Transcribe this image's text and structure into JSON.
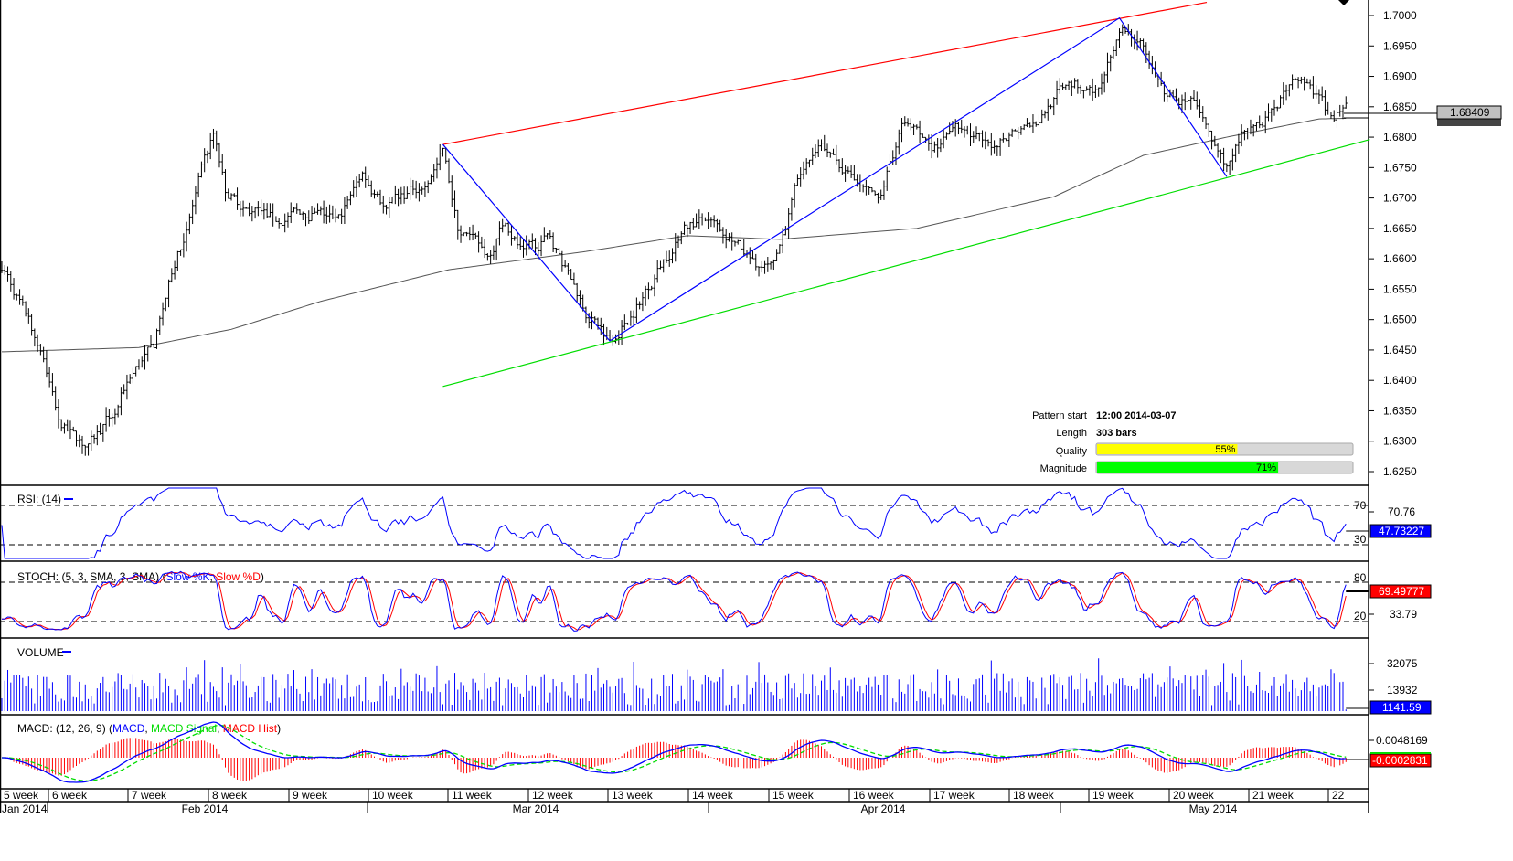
{
  "chart_data": {
    "type": "ohlc",
    "instrument_timeframe_bars_per_week": 30,
    "price_axis": {
      "ticks": [
        "1.7000",
        "1.6950",
        "1.6900",
        "1.6850",
        "1.6800",
        "1.6750",
        "1.6700",
        "1.6650",
        "1.6600",
        "1.6550",
        "1.6500",
        "1.6450",
        "1.6400",
        "1.6350",
        "1.6300",
        "1.6250"
      ],
      "ylim": [
        1.625,
        1.7
      ]
    },
    "current_price": "1.68409",
    "price_path": [
      [
        0,
        1.659
      ],
      [
        6,
        1.653
      ],
      [
        14,
        1.6439
      ],
      [
        20,
        1.6319
      ],
      [
        29,
        1.6289
      ],
      [
        38,
        1.6349
      ],
      [
        43,
        1.6409
      ],
      [
        51,
        1.6454
      ],
      [
        57,
        1.6575
      ],
      [
        61,
        1.6635
      ],
      [
        66,
        1.6725
      ],
      [
        71,
        1.68
      ],
      [
        75,
        1.671
      ],
      [
        83,
        1.668
      ],
      [
        92,
        1.6665
      ],
      [
        101,
        1.668
      ],
      [
        113,
        1.6665
      ],
      [
        121,
        1.674
      ],
      [
        129,
        1.668
      ],
      [
        141,
        1.6725
      ],
      [
        148,
        1.6778
      ],
      [
        153,
        1.665
      ],
      [
        163,
        1.6605
      ],
      [
        169,
        1.6665
      ],
      [
        175,
        1.6605
      ],
      [
        184,
        1.6635
      ],
      [
        196,
        1.6515
      ],
      [
        204,
        1.6469
      ],
      [
        212,
        1.6515
      ],
      [
        221,
        1.659
      ],
      [
        229,
        1.665
      ],
      [
        236,
        1.6665
      ],
      [
        245,
        1.6635
      ],
      [
        252,
        1.659
      ],
      [
        259,
        1.6582
      ],
      [
        267,
        1.6725
      ],
      [
        275,
        1.68
      ],
      [
        281,
        1.6755
      ],
      [
        288,
        1.671
      ],
      [
        294,
        1.6695
      ],
      [
        302,
        1.6815
      ],
      [
        313,
        1.6785
      ],
      [
        322,
        1.6823
      ],
      [
        330,
        1.6785
      ],
      [
        337,
        1.68
      ],
      [
        348,
        1.683
      ],
      [
        357,
        1.689
      ],
      [
        368,
        1.6875
      ],
      [
        375,
        1.6988
      ],
      [
        383,
        1.695
      ],
      [
        391,
        1.686
      ],
      [
        399,
        1.686
      ],
      [
        406,
        1.68
      ],
      [
        411,
        1.6747
      ],
      [
        417,
        1.6815
      ],
      [
        426,
        1.6838
      ],
      [
        434,
        1.6905
      ],
      [
        442,
        1.686
      ],
      [
        446,
        1.683
      ],
      [
        451,
        1.6844
      ]
    ],
    "ma_path": [
      [
        0,
        1.6447
      ],
      [
        46,
        1.6454
      ],
      [
        77,
        1.6484
      ],
      [
        107,
        1.653
      ],
      [
        150,
        1.6582
      ],
      [
        196,
        1.6612
      ],
      [
        230,
        1.6638
      ],
      [
        261,
        1.6632
      ],
      [
        307,
        1.665
      ],
      [
        353,
        1.6702
      ],
      [
        383,
        1.677
      ],
      [
        411,
        1.68
      ],
      [
        442,
        1.683
      ],
      [
        451,
        1.6831
      ]
    ],
    "trend_lines": {
      "resistance": {
        "color": "#ff0000",
        "points": [
          [
            148,
            1.6788
          ],
          [
            375,
            1.6995
          ]
        ]
      },
      "support": {
        "color": "#00dd00",
        "points": [
          [
            148,
            1.639
          ],
          [
            459,
            1.6796
          ]
        ]
      },
      "zigzag": {
        "color": "#0000ff",
        "points": [
          [
            148,
            1.6788
          ],
          [
            204,
            1.6465
          ],
          [
            375,
            1.6996
          ],
          [
            411,
            1.6735
          ]
        ]
      }
    },
    "x_weeks": [
      "5 week",
      "6 week",
      "7 week",
      "8 week",
      "9 week",
      "10 week",
      "11 week",
      "12 week",
      "13 week",
      "14 week",
      "15 week",
      "16 week",
      "17 week",
      "18 week",
      "19 week",
      "20 week",
      "21 week",
      "22"
    ],
    "x_months": [
      "Jan 2014",
      "Feb 2014",
      "Mar 2014",
      "Apr 2014",
      "May 2014"
    ],
    "pattern": {
      "start_label": "Pattern start",
      "start_value": "12:00 2014-03-07",
      "length_label": "Length",
      "length_value": "303 bars",
      "quality_label": "Quality",
      "quality_value": "55%",
      "quality": 55,
      "magnitude_label": "Magnitude",
      "magnitude_value": "71%",
      "magnitude": 71
    },
    "rsi": {
      "title": "RSI: (14)",
      "level_high": "70",
      "level_low": "30",
      "axis_label": "70.76",
      "current": "47.73227"
    },
    "stoch": {
      "title": "STOCH: (5, 3, SMA, 3, SMA) (",
      "k_label": "Slow %K",
      "sep": ", ",
      "d_label": "Slow %D",
      "close": ")",
      "level_high": "80",
      "level_low": "20",
      "axis_label": "33.79",
      "current": "69.49777"
    },
    "volume": {
      "title": "VOLUME",
      "axis_labels": [
        "32075",
        "13932"
      ],
      "current": "1141.59"
    },
    "macd": {
      "title": "MACD: (12, 26, 9) (",
      "macd_label": "MACD",
      "sep1": ", ",
      "signal_label": "MACD Signal",
      "sep2": ", ",
      "hist_label": "MACD Hist",
      "close": ")",
      "axis_label": "0.0048169",
      "current": "-0.0002831"
    },
    "colors": {
      "bars": "#000000",
      "ma": "#555555",
      "rsi": "#0000ff",
      "stoch_k": "#0000ff",
      "stoch_d": "#ff0000",
      "volume": "#0000ff",
      "macd": "#0000ff",
      "signal": "#00dd00",
      "hist": "#ff0000",
      "quality": "#ffff00",
      "magnitude": "#00ff00"
    }
  }
}
